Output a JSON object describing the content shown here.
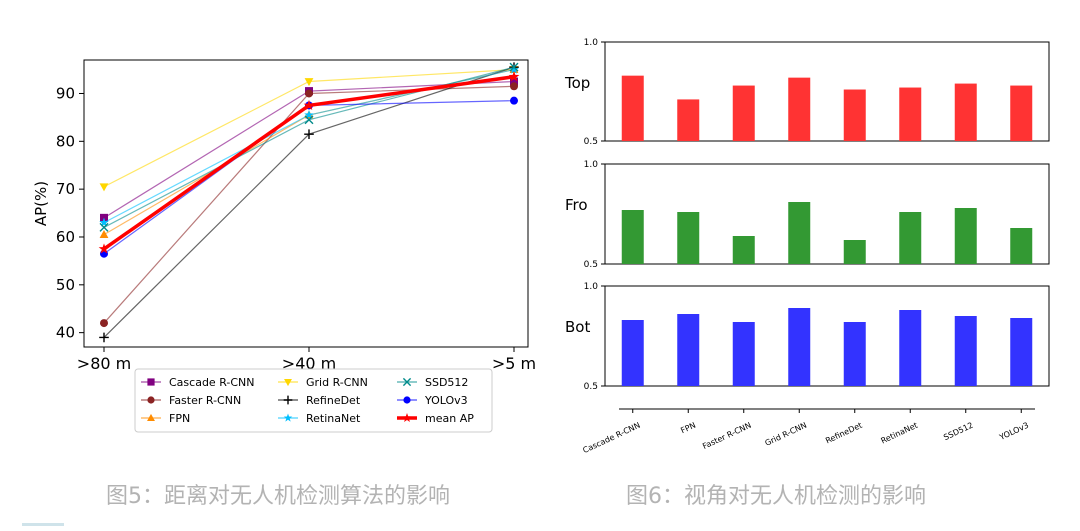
{
  "captions": {
    "fig5": "图5：距离对无人机检测算法的影响",
    "fig6": "图6：视角对无人机检测的影响"
  },
  "chart_data": [
    {
      "type": "line",
      "title": "",
      "xlabel": "",
      "ylabel": "AP(%)",
      "categories": [
        ">80 m",
        ">40 m",
        ">5 m"
      ],
      "ylim": [
        37,
        97
      ],
      "yticks": [
        40,
        50,
        60,
        70,
        80,
        90
      ],
      "grid": false,
      "legend_position": "bottom",
      "series": [
        {
          "name": "Cascade R-CNN",
          "values": [
            64,
            90.5,
            92.5
          ],
          "color": "#800080",
          "marker": "square"
        },
        {
          "name": "Faster R-CNN",
          "values": [
            42,
            90,
            91.5
          ],
          "color": "#8b2323",
          "marker": "circle"
        },
        {
          "name": "FPN",
          "values": [
            60.5,
            85.5,
            95
          ],
          "color": "#ff8c00",
          "marker": "triangle"
        },
        {
          "name": "Grid R-CNN",
          "values": [
            70.5,
            92.5,
            95
          ],
          "color": "#ffd700",
          "marker": "triangle-down"
        },
        {
          "name": "RefineDet",
          "values": [
            39,
            81.5,
            95.5
          ],
          "color": "#000000",
          "marker": "plus"
        },
        {
          "name": "RetinaNet",
          "values": [
            63,
            85.5,
            95
          ],
          "color": "#00bfff",
          "marker": "star"
        },
        {
          "name": "SSD512",
          "values": [
            62,
            84.5,
            95.5
          ],
          "color": "#008b8b",
          "marker": "x"
        },
        {
          "name": "YOLOv3",
          "values": [
            56.5,
            87.5,
            88.5
          ],
          "color": "#0000ff",
          "marker": "hexagon"
        },
        {
          "name": "mean AP",
          "values": [
            57.5,
            87.5,
            93.5
          ],
          "color": "#ff0000",
          "marker": "star",
          "bold": true
        }
      ]
    },
    {
      "type": "bar",
      "categories": [
        "Cascade R-CNN",
        "FPN",
        "Faster R-CNN",
        "Grid R-CNN",
        "RefineDet",
        "RetinaNet",
        "SSD512",
        "YOLOv3"
      ],
      "ylim": [
        0.5,
        1.0
      ],
      "yticks": [
        0.5,
        1.0
      ],
      "grid": false,
      "panels": [
        {
          "name": "Top",
          "color": "#ff3333",
          "values": [
            0.83,
            0.71,
            0.78,
            0.82,
            0.76,
            0.77,
            0.79,
            0.78
          ]
        },
        {
          "name": "Fro",
          "color": "#339933",
          "values": [
            0.77,
            0.76,
            0.64,
            0.81,
            0.62,
            0.76,
            0.78,
            0.68
          ]
        },
        {
          "name": "Bot",
          "color": "#3333ff",
          "values": [
            0.83,
            0.86,
            0.82,
            0.89,
            0.82,
            0.88,
            0.85,
            0.84
          ]
        }
      ]
    }
  ]
}
